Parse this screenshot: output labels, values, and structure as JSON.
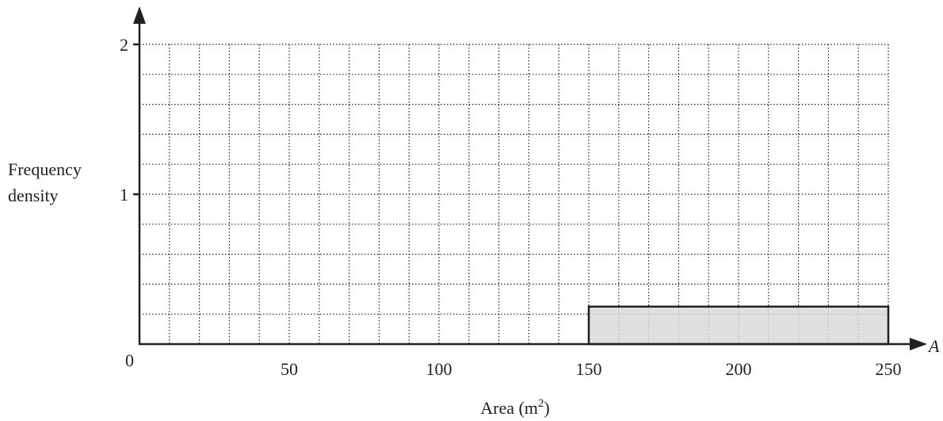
{
  "chart_data": {
    "type": "bar",
    "title": "",
    "xlabel": "Area (m",
    "xlabel_sup": "2",
    "xlabel_close": ")",
    "ylabel_lines": [
      "Frequency",
      "density"
    ],
    "x_axis_symbol": "A",
    "origin_label": "0",
    "xlim": [
      0,
      250
    ],
    "ylim": [
      0,
      2
    ],
    "x_ticks": [
      50,
      100,
      150,
      200,
      250
    ],
    "y_ticks": [
      1,
      2
    ],
    "x_minor_step": 10,
    "y_minor_step": 0.2,
    "grid": true,
    "bars": [
      {
        "x_start": 150,
        "x_end": 250,
        "value": 0.25
      }
    ],
    "bar_fill": "#d9d9d9",
    "line_color": "#231f20"
  }
}
